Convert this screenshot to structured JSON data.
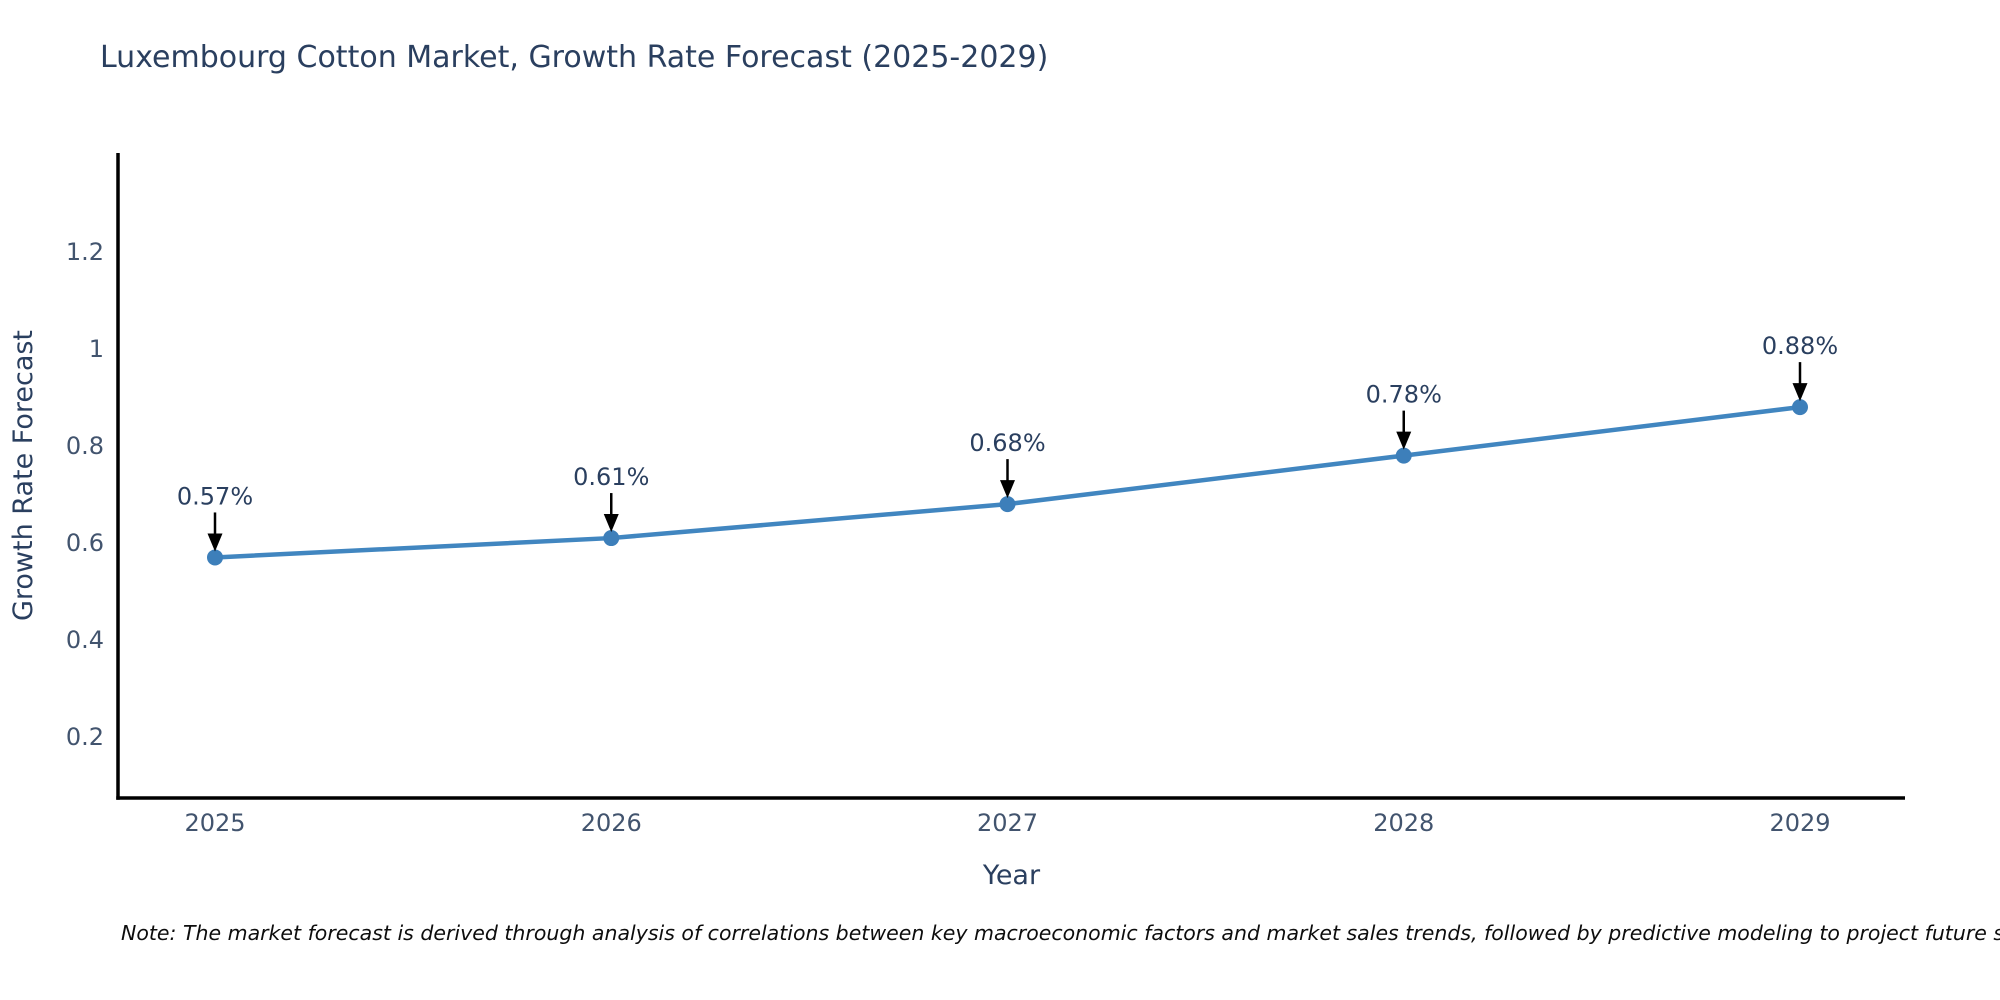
{
  "title": "Luxembourg Cotton Market, Growth Rate Forecast (2025-2029)",
  "note": "Note: The market forecast is derived through analysis of correlations between key macroeconomic factors and market sales trends, followed by predictive modeling to project future sales",
  "colors": {
    "background": "#ffffff",
    "title_text": "#2a3f5f",
    "axis_title_text": "#2a3f5f",
    "tick_text": "#42546e",
    "axis_line": "#000000",
    "series_line": "#4186c0",
    "marker_fill": "#3d7fba",
    "annotation_text": "#2a3f5f",
    "arrow": "#000000"
  },
  "chart_data": {
    "type": "line",
    "title": "Luxembourg Cotton Market, Growth Rate Forecast (2025-2029)",
    "xlabel": "Year",
    "ylabel": "Growth Rate Forecast",
    "x": [
      2025,
      2026,
      2027,
      2028,
      2029
    ],
    "y": [
      0.57,
      0.61,
      0.68,
      0.78,
      0.88
    ],
    "point_labels": [
      "0.57%",
      "0.61%",
      "0.68%",
      "0.78%",
      "0.88%"
    ],
    "xtick_labels": [
      "2025",
      "2026",
      "2027",
      "2028",
      "2029"
    ],
    "yticks": [
      0.2,
      0.4,
      0.6,
      0.8,
      1,
      1.2
    ],
    "ytick_labels": [
      "0.2",
      "0.4",
      "0.6",
      "0.8",
      "1",
      "1.2"
    ],
    "ylim": [
      0.074,
      1.404
    ],
    "grid": false,
    "legend": false,
    "annotations": "down-arrow above each point"
  }
}
